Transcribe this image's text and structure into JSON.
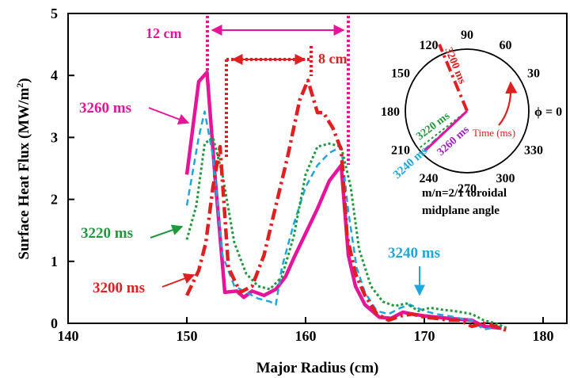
{
  "chart_data": {
    "type": "line",
    "xlabel": "Major Radius (cm)",
    "ylabel": "Surface Heat Flux (MW/m",
    "ylabel_sup": "2",
    "ylabel_close": ")",
    "xlim": [
      140,
      182
    ],
    "ylim": [
      0,
      5
    ],
    "xticks": [
      "140",
      "150",
      "160",
      "170",
      "180"
    ],
    "yticks": [
      "0",
      "1",
      "2",
      "3",
      "4",
      "5"
    ],
    "grid": false,
    "series": [
      {
        "name": "3260 ms",
        "color": "#e6149a",
        "dash": "solid",
        "x": [
          150,
          151,
          151.7,
          152.4,
          153.2,
          154.2,
          154.8,
          155.5,
          156.5,
          157.5,
          158.3,
          159,
          160,
          161,
          162,
          163,
          163.6,
          164.2,
          165,
          166.2,
          167.2,
          168.2,
          169,
          170,
          171,
          172,
          174,
          175,
          176.5
        ],
        "y": [
          2.4,
          3.9,
          4.05,
          2.3,
          0.5,
          0.52,
          0.42,
          0.52,
          0.45,
          0.55,
          0.75,
          1.05,
          1.45,
          1.85,
          2.3,
          2.55,
          1.1,
          0.6,
          0.3,
          0.1,
          0.08,
          0.18,
          0.15,
          0.12,
          0.1,
          0.08,
          0.05,
          -0.05,
          -0.08
        ]
      },
      {
        "name": "3240 ms",
        "color": "#1ea7dc",
        "dash": "8,5",
        "x": [
          150,
          151,
          151.5,
          152.2,
          153,
          154,
          155,
          156,
          157,
          157.5,
          158,
          159,
          160,
          161,
          162,
          163,
          163.6,
          164.3,
          165,
          166,
          167,
          168,
          168.8,
          170,
          171,
          172,
          173,
          174,
          175,
          176.5
        ],
        "y": [
          1.9,
          3.0,
          3.42,
          2.7,
          1.1,
          0.6,
          0.5,
          0.4,
          0.35,
          0.3,
          0.9,
          1.6,
          2.2,
          2.55,
          2.75,
          2.85,
          1.8,
          0.9,
          0.5,
          0.2,
          0.15,
          0.25,
          0.3,
          0.2,
          0.15,
          0.12,
          0.08,
          0.05,
          -0.1,
          -0.05
        ]
      },
      {
        "name": "3220 ms",
        "color": "#1e9a3c",
        "dash": "3,3",
        "x": [
          150,
          150.8,
          151.5,
          152.2,
          153,
          154,
          155,
          156,
          157,
          158,
          159,
          160,
          161,
          162,
          163,
          163.8,
          164.5,
          165.5,
          166.5,
          167.5,
          168.5,
          169.5,
          170.5,
          171.5,
          172.5,
          174,
          175,
          176,
          177
        ],
        "y": [
          1.35,
          1.9,
          2.9,
          3.0,
          2.4,
          1.3,
          0.8,
          0.6,
          0.55,
          0.75,
          1.4,
          2.4,
          2.85,
          2.9,
          2.85,
          2.2,
          1.2,
          0.6,
          0.35,
          0.28,
          0.32,
          0.2,
          0.25,
          0.22,
          0.2,
          0.15,
          0.05,
          0.0,
          -0.08
        ]
      },
      {
        "name": "3200 ms",
        "color": "#e02020",
        "dash": "14,5,3,5",
        "x": [
          150,
          151,
          151.6,
          152.2,
          152.8,
          153.5,
          154.5,
          155.5,
          156.5,
          157.5,
          158.5,
          159.5,
          160.2,
          161,
          161.5,
          162.3,
          163,
          163.5,
          164.2,
          165,
          166,
          167,
          168,
          169,
          170,
          171,
          172,
          173,
          174,
          175,
          176,
          177
        ],
        "y": [
          0.45,
          0.85,
          1.3,
          2.2,
          2.85,
          0.9,
          0.5,
          0.6,
          1.1,
          1.9,
          2.7,
          3.6,
          3.92,
          3.4,
          3.4,
          3.15,
          2.8,
          1.4,
          0.8,
          0.45,
          0.15,
          0.05,
          0.12,
          0.15,
          0.1,
          0.08,
          0.05,
          0.05,
          -0.05,
          0.0,
          -0.05,
          -0.12
        ]
      }
    ],
    "annotations": {
      "label_3260": "3260 ms",
      "label_3240": "3240 ms",
      "label_3220": "3220 ms",
      "label_3200": "3200 ms",
      "width_12": "12 cm",
      "width_8": "8 cm"
    },
    "inset": {
      "angles": [
        "90",
        "60",
        "30",
        "ϕ = 0",
        "330",
        "300",
        "270",
        "240",
        "210",
        "180",
        "150",
        "120"
      ],
      "line_labels": [
        "3200 ms",
        "3220 ms",
        "3260 ms",
        "3240 ms"
      ],
      "time_label": "Time (ms)",
      "caption_line1": "m/n=2/1 toroidal",
      "caption_line2": "midplane angle"
    }
  }
}
